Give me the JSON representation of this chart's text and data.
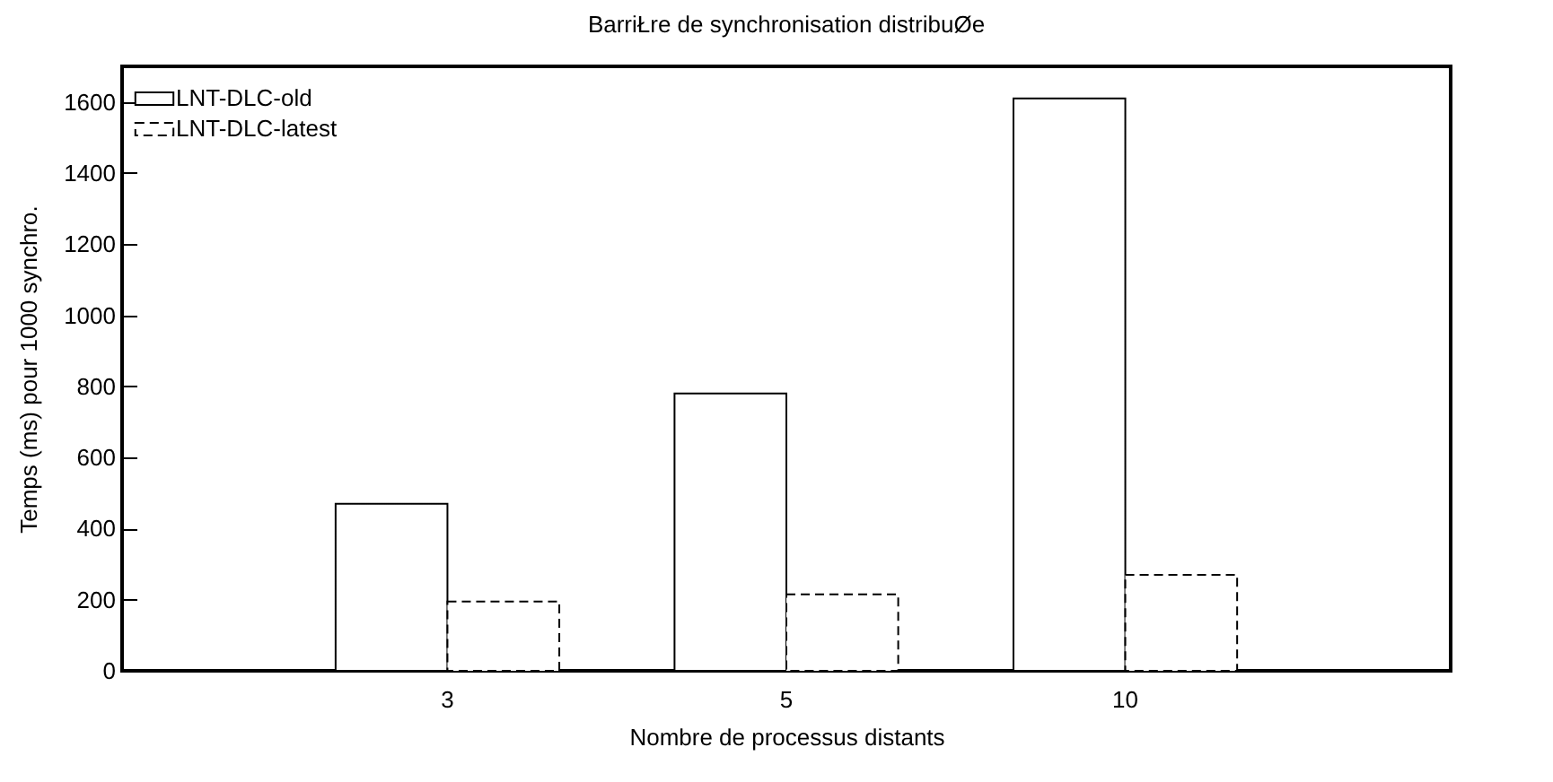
{
  "chart_data": {
    "type": "bar",
    "title": "BarriŁre de synchronisation distribuØe",
    "xlabel": "Nombre de processus distants",
    "ylabel": "Temps (ms) pour 1000 synchro.",
    "categories": [
      "3",
      "5",
      "10"
    ],
    "series": [
      {
        "name": "LNT-DLC-old",
        "color": "#ffffff",
        "line_style": "solid",
        "values": [
          470,
          780,
          1610
        ]
      },
      {
        "name": "LNT-DLC-latest",
        "color": "#ffffff",
        "line_style": "dashed",
        "values": [
          195,
          215,
          270
        ]
      }
    ],
    "ylim": [
      0,
      1700
    ],
    "yticks": [
      0,
      200,
      400,
      600,
      800,
      1000,
      1200,
      1400,
      1600
    ],
    "grid": false,
    "legend": "top left"
  }
}
